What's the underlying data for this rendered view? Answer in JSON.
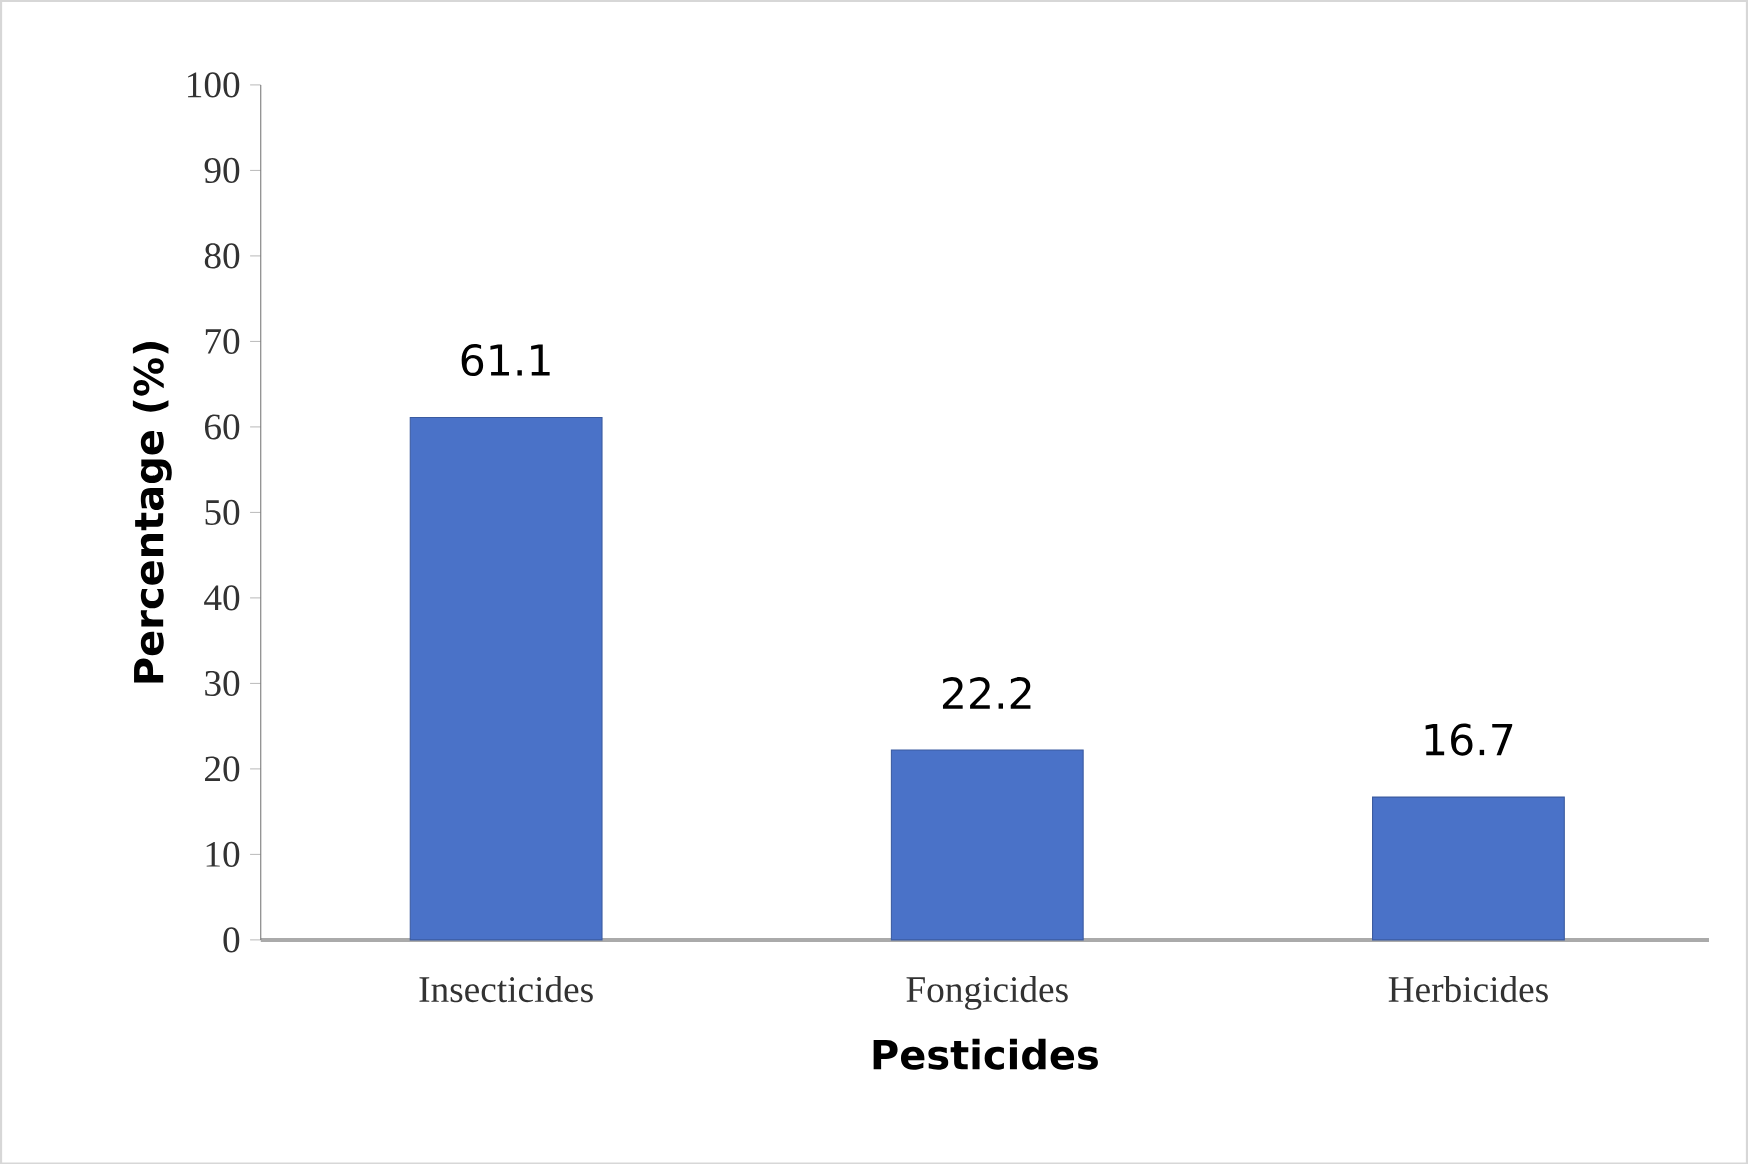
{
  "chart_data": {
    "type": "bar",
    "xlabel": "Pesticides",
    "ylabel": "Percentage (%)",
    "categories": [
      "Insecticides",
      "Fongicides",
      "Herbicides"
    ],
    "values": [
      61.1,
      22.2,
      16.7
    ],
    "color": "#4a72c8",
    "ylim": [
      0,
      100
    ],
    "yticks": [
      0,
      10,
      20,
      30,
      40,
      50,
      60,
      70,
      80,
      90,
      100
    ],
    "data_labels": true
  }
}
